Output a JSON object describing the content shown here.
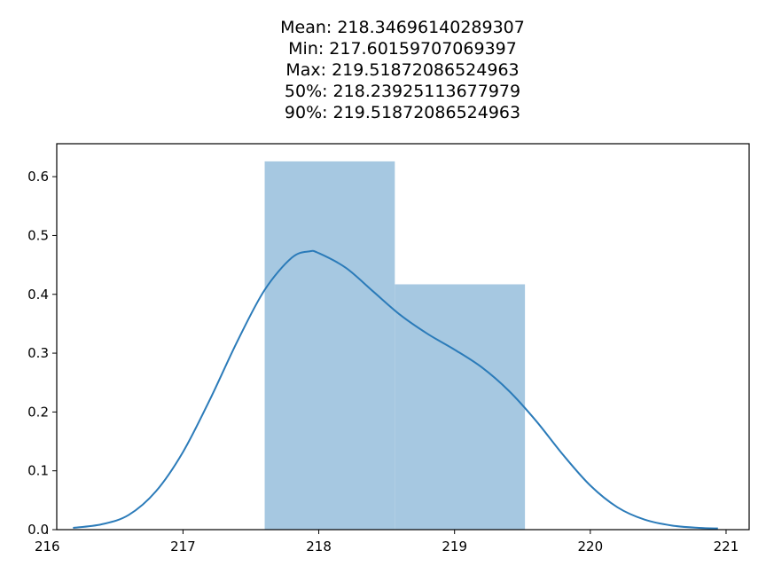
{
  "chart_data": {
    "type": "bar",
    "title_lines": [
      "Mean: 218.34696140289307",
      "Min: 217.60159707069397",
      "Max: 219.51872086524963",
      "50%: 218.23925113677979",
      "90%: 219.51872086524963"
    ],
    "xlabel": "",
    "ylabel": "",
    "xlim": [
      216.07,
      221.17
    ],
    "ylim": [
      0,
      0.656
    ],
    "x_ticks": [
      216,
      217,
      218,
      219,
      220,
      221
    ],
    "y_ticks": [
      0.0,
      0.1,
      0.2,
      0.3,
      0.4,
      0.5,
      0.6
    ],
    "histogram": {
      "bins": [
        {
          "start": 217.6016,
          "end": 218.5601,
          "density": 0.626
        },
        {
          "start": 218.5601,
          "end": 219.5187,
          "density": 0.417
        }
      ],
      "color": "#a6c8e1"
    },
    "kde": {
      "color": "#2b7bb9",
      "points": [
        [
          216.19,
          0.003
        ],
        [
          216.4,
          0.009
        ],
        [
          216.6,
          0.025
        ],
        [
          216.8,
          0.065
        ],
        [
          217.0,
          0.132
        ],
        [
          217.2,
          0.222
        ],
        [
          217.4,
          0.32
        ],
        [
          217.6,
          0.407
        ],
        [
          217.8,
          0.462
        ],
        [
          217.93,
          0.473
        ],
        [
          218.0,
          0.47
        ],
        [
          218.2,
          0.445
        ],
        [
          218.4,
          0.405
        ],
        [
          218.6,
          0.365
        ],
        [
          218.8,
          0.333
        ],
        [
          219.0,
          0.306
        ],
        [
          219.2,
          0.276
        ],
        [
          219.4,
          0.236
        ],
        [
          219.6,
          0.185
        ],
        [
          219.8,
          0.127
        ],
        [
          220.0,
          0.075
        ],
        [
          220.2,
          0.038
        ],
        [
          220.4,
          0.017
        ],
        [
          220.6,
          0.007
        ],
        [
          220.8,
          0.003
        ],
        [
          220.94,
          0.002
        ]
      ]
    }
  }
}
